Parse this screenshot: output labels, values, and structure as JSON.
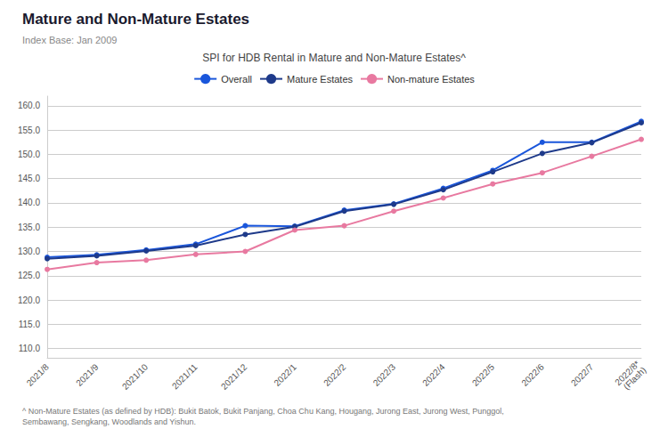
{
  "chart_data": {
    "type": "line",
    "title": "Mature and Non-Mature Estates",
    "subtitle": "Index Base: Jan 2009",
    "annotations": [
      "SPI for HDB Rental in Mature and Non-Mature Estates^",
      "^ Non-Mature Estates (as defined by HDB): Bukit Batok, Bukit Panjang, Choa Chu Kang, Hougang, Jurong East, Jurong West, Punggol,\nSembawang, Sengkang, Woodlands and Yishun."
    ],
    "categories": [
      "2021/8",
      "2021/9",
      "2021/10",
      "2021/11",
      "2021/12",
      "2022/1",
      "2022/2",
      "2022/3",
      "2022/4",
      "2022/5",
      "2022/6",
      "2022/7",
      "2022/8*\n(Flash)"
    ],
    "series": [
      {
        "name": "Overall",
        "color": "#1a56db",
        "marker": "circle",
        "values": [
          128.8,
          129.3,
          130.3,
          131.5,
          135.3,
          135.2,
          138.5,
          139.8,
          143.0,
          146.7,
          152.5,
          152.5,
          156.8
        ]
      },
      {
        "name": "Mature Estates",
        "color": "#1e3a8a",
        "marker": "circle",
        "values": [
          128.5,
          129.1,
          130.1,
          131.2,
          133.5,
          135.1,
          138.3,
          139.7,
          142.7,
          146.4,
          150.2,
          152.4,
          156.5
        ]
      },
      {
        "name": "Non-mature Estates",
        "color": "#e879a0",
        "marker": "circle",
        "values": [
          126.3,
          127.7,
          128.2,
          129.4,
          130.0,
          134.4,
          135.3,
          138.3,
          141.0,
          143.9,
          146.2,
          149.6,
          153.1
        ]
      }
    ],
    "ylim": [
      108.0,
      162.0
    ],
    "yticks": [
      {
        "value": 110.0,
        "label": "110.0"
      },
      {
        "value": 115.0,
        "label": "115.0"
      },
      {
        "value": 120.0,
        "label": "120.0"
      },
      {
        "value": 125.0,
        "label": "125.0"
      },
      {
        "value": 130.0,
        "label": "130.0"
      },
      {
        "value": 135.0,
        "label": "135.0"
      },
      {
        "value": 140.0,
        "label": "140.0"
      },
      {
        "value": 145.0,
        "label": "145.0"
      },
      {
        "value": 150.0,
        "label": "150.0"
      },
      {
        "value": 155.0,
        "label": "155.0"
      },
      {
        "value": 160.0,
        "label": "160.0"
      }
    ],
    "grid": true,
    "legend": "top"
  }
}
